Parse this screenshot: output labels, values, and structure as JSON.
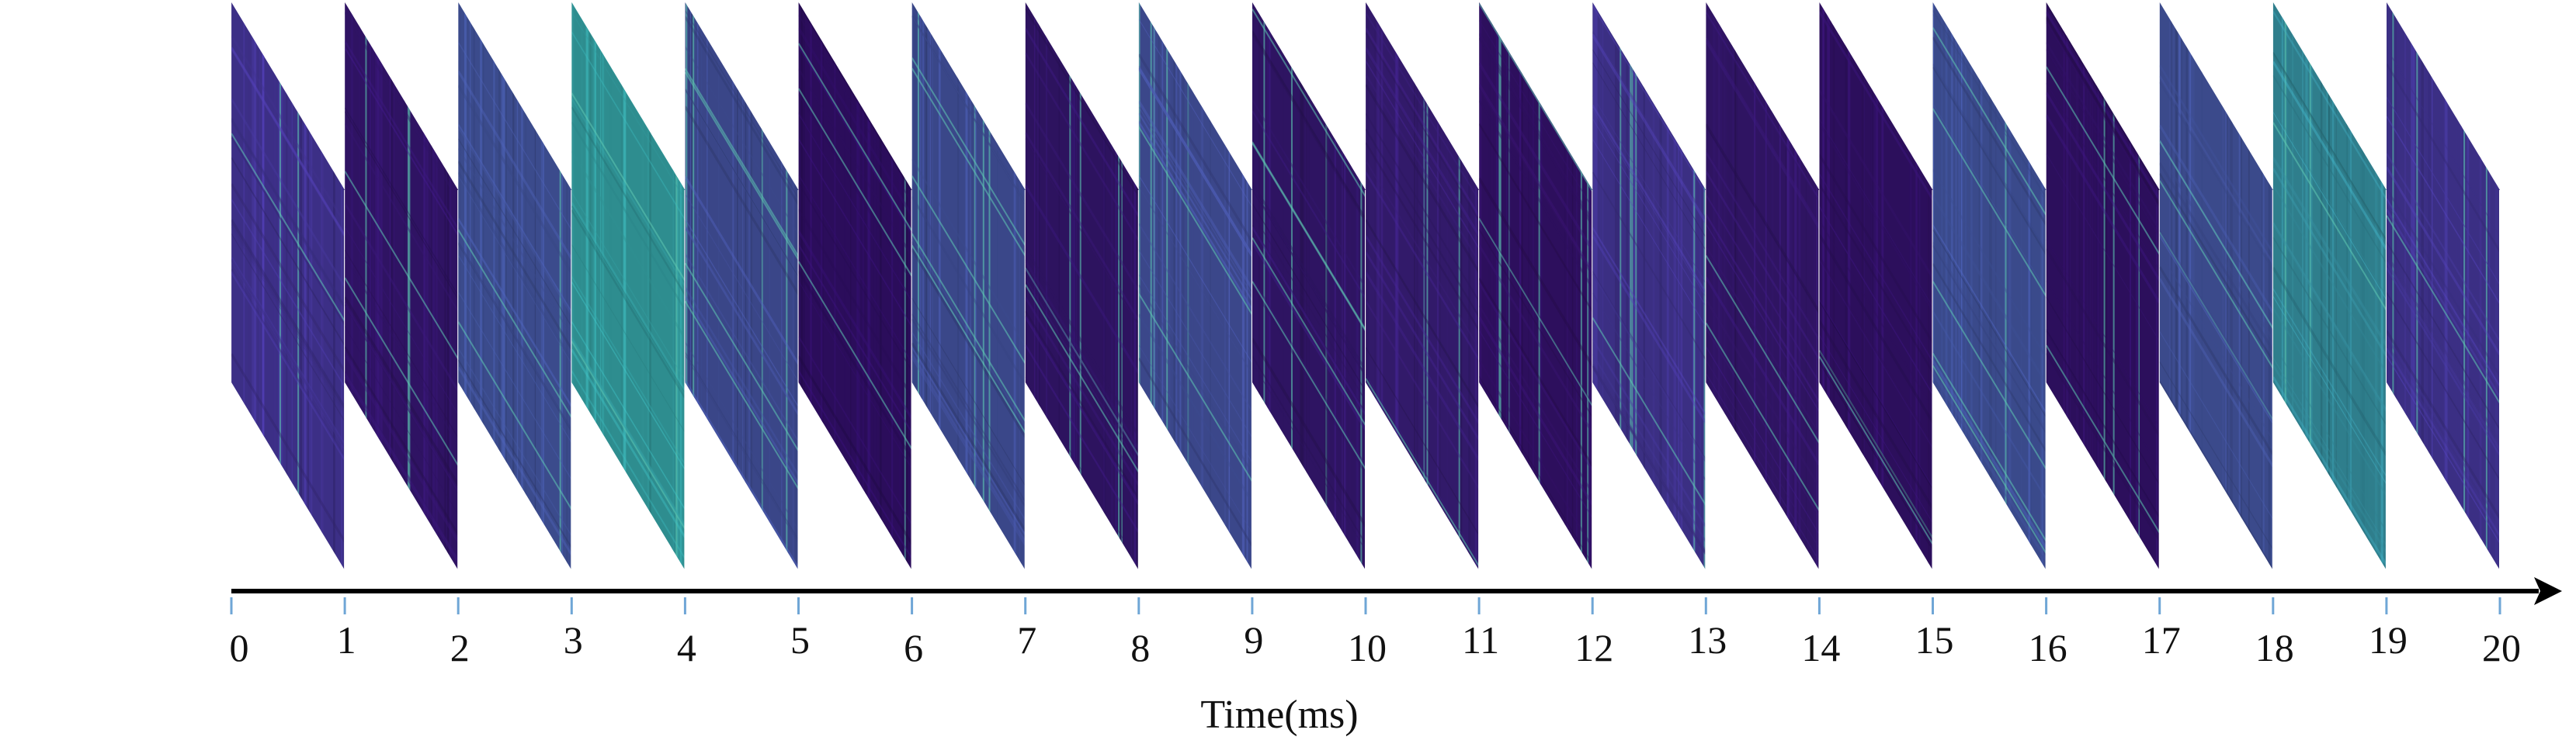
{
  "axis": {
    "title": "Time(ms)",
    "tick_labels": [
      "0",
      "1",
      "2",
      "3",
      "4",
      "5",
      "6",
      "7",
      "8",
      "9",
      "10",
      "11",
      "12",
      "13",
      "14",
      "15",
      "16",
      "17",
      "18",
      "19",
      "20"
    ]
  },
  "panels": [
    {
      "tone": "#3c2f86"
    },
    {
      "tone": "#2f1363"
    },
    {
      "tone": "#3b4b8c"
    },
    {
      "tone": "#2e8d8f"
    },
    {
      "tone": "#3a4688"
    },
    {
      "tone": "#2b0d5b"
    },
    {
      "tone": "#3a4789"
    },
    {
      "tone": "#2d135f"
    },
    {
      "tone": "#3b478a"
    },
    {
      "tone": "#2e1462"
    },
    {
      "tone": "#321a6a"
    },
    {
      "tone": "#2d0f5d"
    },
    {
      "tone": "#3b2f83"
    },
    {
      "tone": "#2f1462"
    },
    {
      "tone": "#2c0f5c"
    },
    {
      "tone": "#3a4a8b"
    },
    {
      "tone": "#2c0f5c"
    },
    {
      "tone": "#3b4a8b"
    },
    {
      "tone": "#2f7e8c"
    },
    {
      "tone": "#3b2f84"
    }
  ],
  "colors": {
    "axis": "#000000",
    "tick": "#6fa6d6",
    "highlight": "#5ec9b3"
  }
}
